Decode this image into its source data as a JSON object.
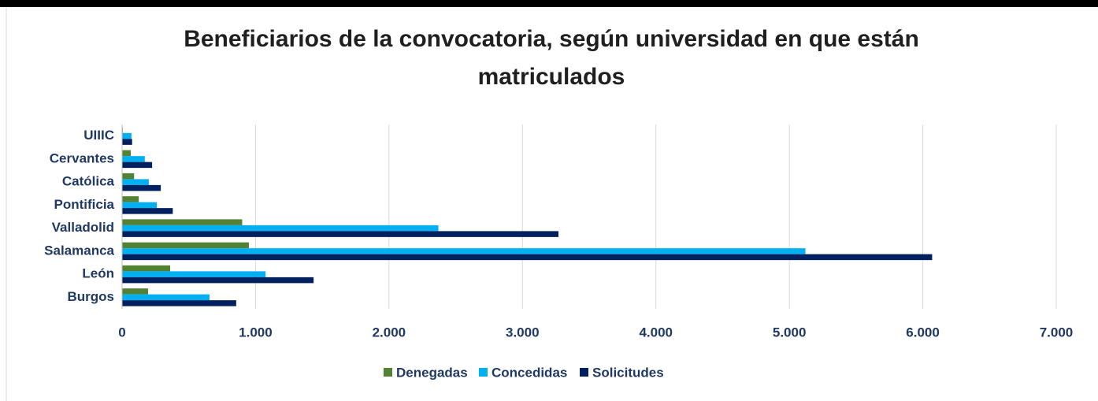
{
  "chart_data": {
    "type": "hbar",
    "title": "Beneficiarios de la convocatoria, según universidad en que están matriculados",
    "categories": [
      "Burgos",
      "León",
      "Salamanca",
      "Valladolid",
      "Pontificia",
      "Católica",
      "Cervantes",
      "UIIIC"
    ],
    "series": [
      {
        "name": "Denegadas",
        "color": "#548235",
        "values": [
          195,
          360,
          950,
          900,
          125,
          90,
          65,
          5
        ]
      },
      {
        "name": "Concedidas",
        "color": "#00b0f0",
        "values": [
          655,
          1075,
          5120,
          2370,
          260,
          200,
          170,
          70
        ]
      },
      {
        "name": "Solicitudes",
        "color": "#002060",
        "values": [
          855,
          1435,
          6070,
          3270,
          380,
          290,
          225,
          75
        ]
      }
    ],
    "xlim": [
      0,
      7000
    ],
    "xticks": [
      0,
      {
        "value": 1000,
        "label": "1.000"
      },
      {
        "value": 2000,
        "label": "2.000"
      },
      {
        "value": 3000,
        "label": "3.000"
      },
      {
        "value": 4000,
        "label": "4.000"
      },
      {
        "value": 5000,
        "label": "5.000"
      },
      {
        "value": 6000,
        "label": "6.000"
      },
      {
        "value": 7000,
        "label": "7.000"
      }
    ],
    "grid": true,
    "legend": "bottom"
  }
}
